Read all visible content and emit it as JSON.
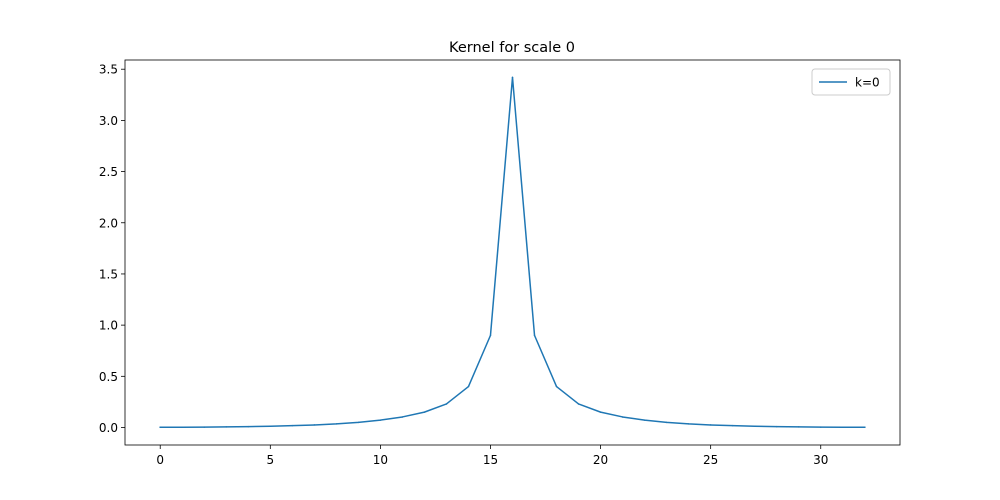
{
  "chart_data": {
    "type": "line",
    "title": "Kernel for scale 0",
    "xlabel": "",
    "ylabel": "",
    "xlim": [
      -1.6,
      33.6
    ],
    "ylim": [
      -0.171,
      3.59
    ],
    "xticks": [
      0,
      5,
      10,
      15,
      20,
      25,
      30
    ],
    "xtick_labels": [
      "0",
      "5",
      "10",
      "15",
      "20",
      "25",
      "30"
    ],
    "yticks": [
      0.0,
      0.5,
      1.0,
      1.5,
      2.0,
      2.5,
      3.0,
      3.5
    ],
    "ytick_labels": [
      "0.0",
      "0.5",
      "1.0",
      "1.5",
      "2.0",
      "2.5",
      "3.0",
      "3.5"
    ],
    "grid": false,
    "legend_position": "top-right",
    "series": [
      {
        "name": "k=0",
        "color": "#1f77b4",
        "x": [
          0,
          1,
          2,
          3,
          4,
          5,
          6,
          7,
          8,
          9,
          10,
          11,
          12,
          13,
          14,
          15,
          16,
          17,
          18,
          19,
          20,
          21,
          22,
          23,
          24,
          25,
          26,
          27,
          28,
          29,
          30,
          31,
          32
        ],
        "y": [
          0.002,
          0.003,
          0.004,
          0.006,
          0.009,
          0.012,
          0.018,
          0.025,
          0.035,
          0.05,
          0.072,
          0.103,
          0.15,
          0.23,
          0.4,
          0.9,
          3.42,
          0.9,
          0.4,
          0.23,
          0.15,
          0.103,
          0.072,
          0.05,
          0.035,
          0.025,
          0.018,
          0.012,
          0.009,
          0.006,
          0.004,
          0.003,
          0.002
        ]
      }
    ]
  }
}
